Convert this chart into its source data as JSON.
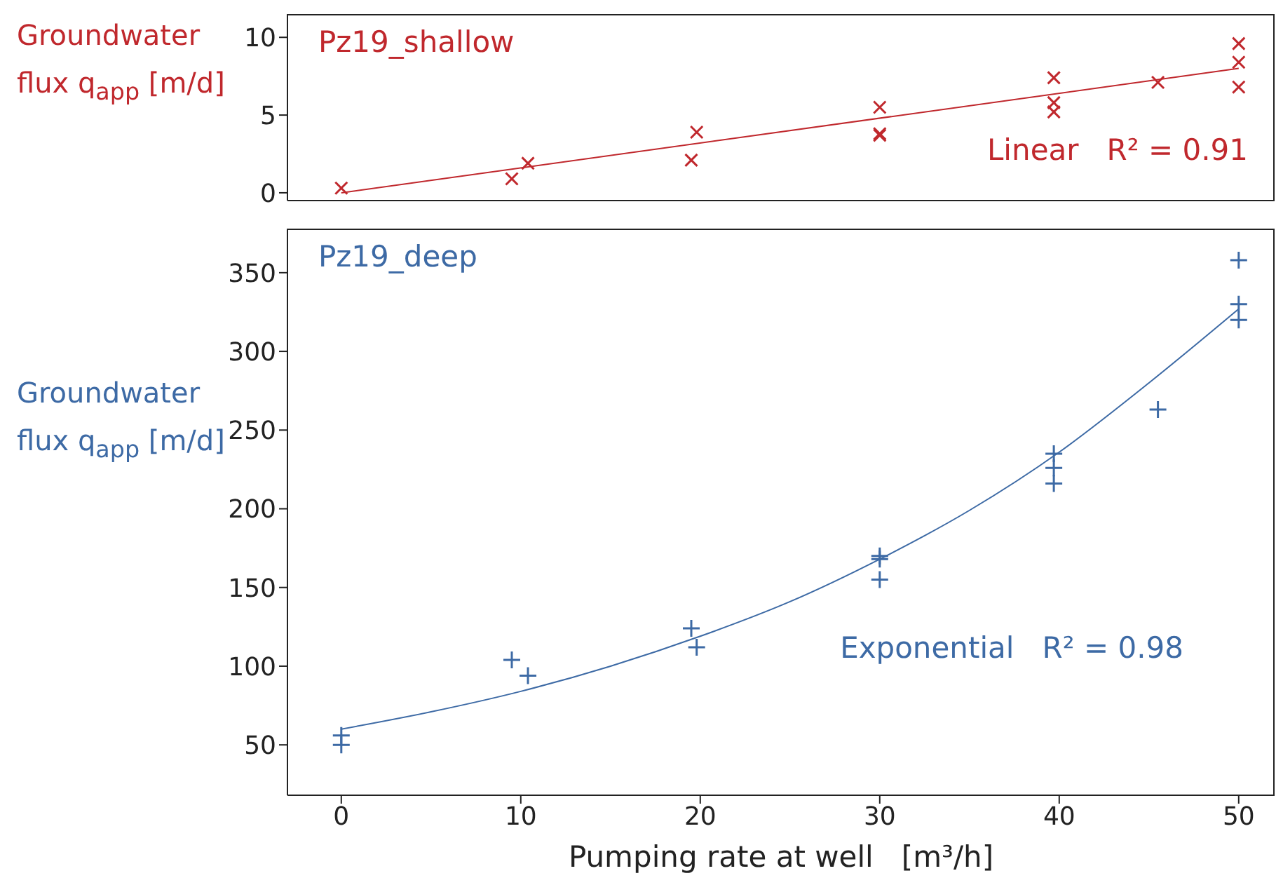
{
  "chart_data": [
    {
      "type": "scatter",
      "title": "Pz19_shallow",
      "ylabel": "Groundwater flux  q$_{app}$  [m/d]",
      "xlim": [
        -3,
        52
      ],
      "xticks": [
        0,
        10,
        20,
        30,
        40,
        50
      ],
      "ylim": [
        -0.5,
        11.5
      ],
      "yticks": [
        0,
        5,
        10
      ],
      "tick_labels": "y",
      "series": [
        {
          "color": "#c0282d",
          "marker": "cross",
          "x": [
            0,
            9.5,
            10.4,
            19.5,
            19.8,
            30,
            30,
            30,
            39.7,
            39.7,
            39.7,
            45.5,
            50,
            50,
            50
          ],
          "values": [
            0.3,
            0.9,
            1.9,
            2.1,
            3.9,
            5.5,
            3.8,
            3.7,
            7.4,
            5.8,
            5.2,
            7.1,
            9.6,
            8.4,
            6.8
          ]
        },
        {
          "name": "Linear   R² = 0.91",
          "type": "line",
          "color": "#c0282d",
          "marker": "none",
          "x": [
            0,
            50
          ],
          "values": [
            0,
            8
          ]
        }
      ]
    },
    {
      "type": "scatter",
      "title": "Pz19_deep",
      "ylabel": "Groundwater flux  q$_{app}$  [m/d]",
      "xlabel": "Pumping rate at well   [m³/h]",
      "xlim": [
        -3,
        52
      ],
      "xticks": [
        0,
        10,
        20,
        30,
        40,
        50
      ],
      "ylim": [
        18,
        378
      ],
      "yticks": [
        50,
        100,
        150,
        200,
        250,
        300,
        350
      ],
      "series": [
        {
          "color": "#3d6aa5",
          "marker": "cross",
          "x": [
            0,
            0,
            9.5,
            10.4,
            19.5,
            19.8,
            30,
            30,
            30,
            39.7,
            39.7,
            39.7,
            45.5,
            50,
            50,
            50
          ],
          "values": [
            56,
            50,
            104,
            94,
            124,
            112,
            170,
            168,
            155,
            235,
            226,
            216,
            263,
            358,
            330,
            320
          ]
        },
        {
          "name": "Exponential   R² = 0.98",
          "type": "line",
          "color": "#3d6aa5",
          "marker": "none",
          "x": [
            0,
            5,
            10,
            15,
            20,
            25,
            30,
            35,
            40,
            45,
            50
          ],
          "values": [
            60,
            71,
            84,
            100,
            119,
            141,
            168,
            199,
            236,
            280,
            327
          ]
        }
      ]
    }
  ]
}
